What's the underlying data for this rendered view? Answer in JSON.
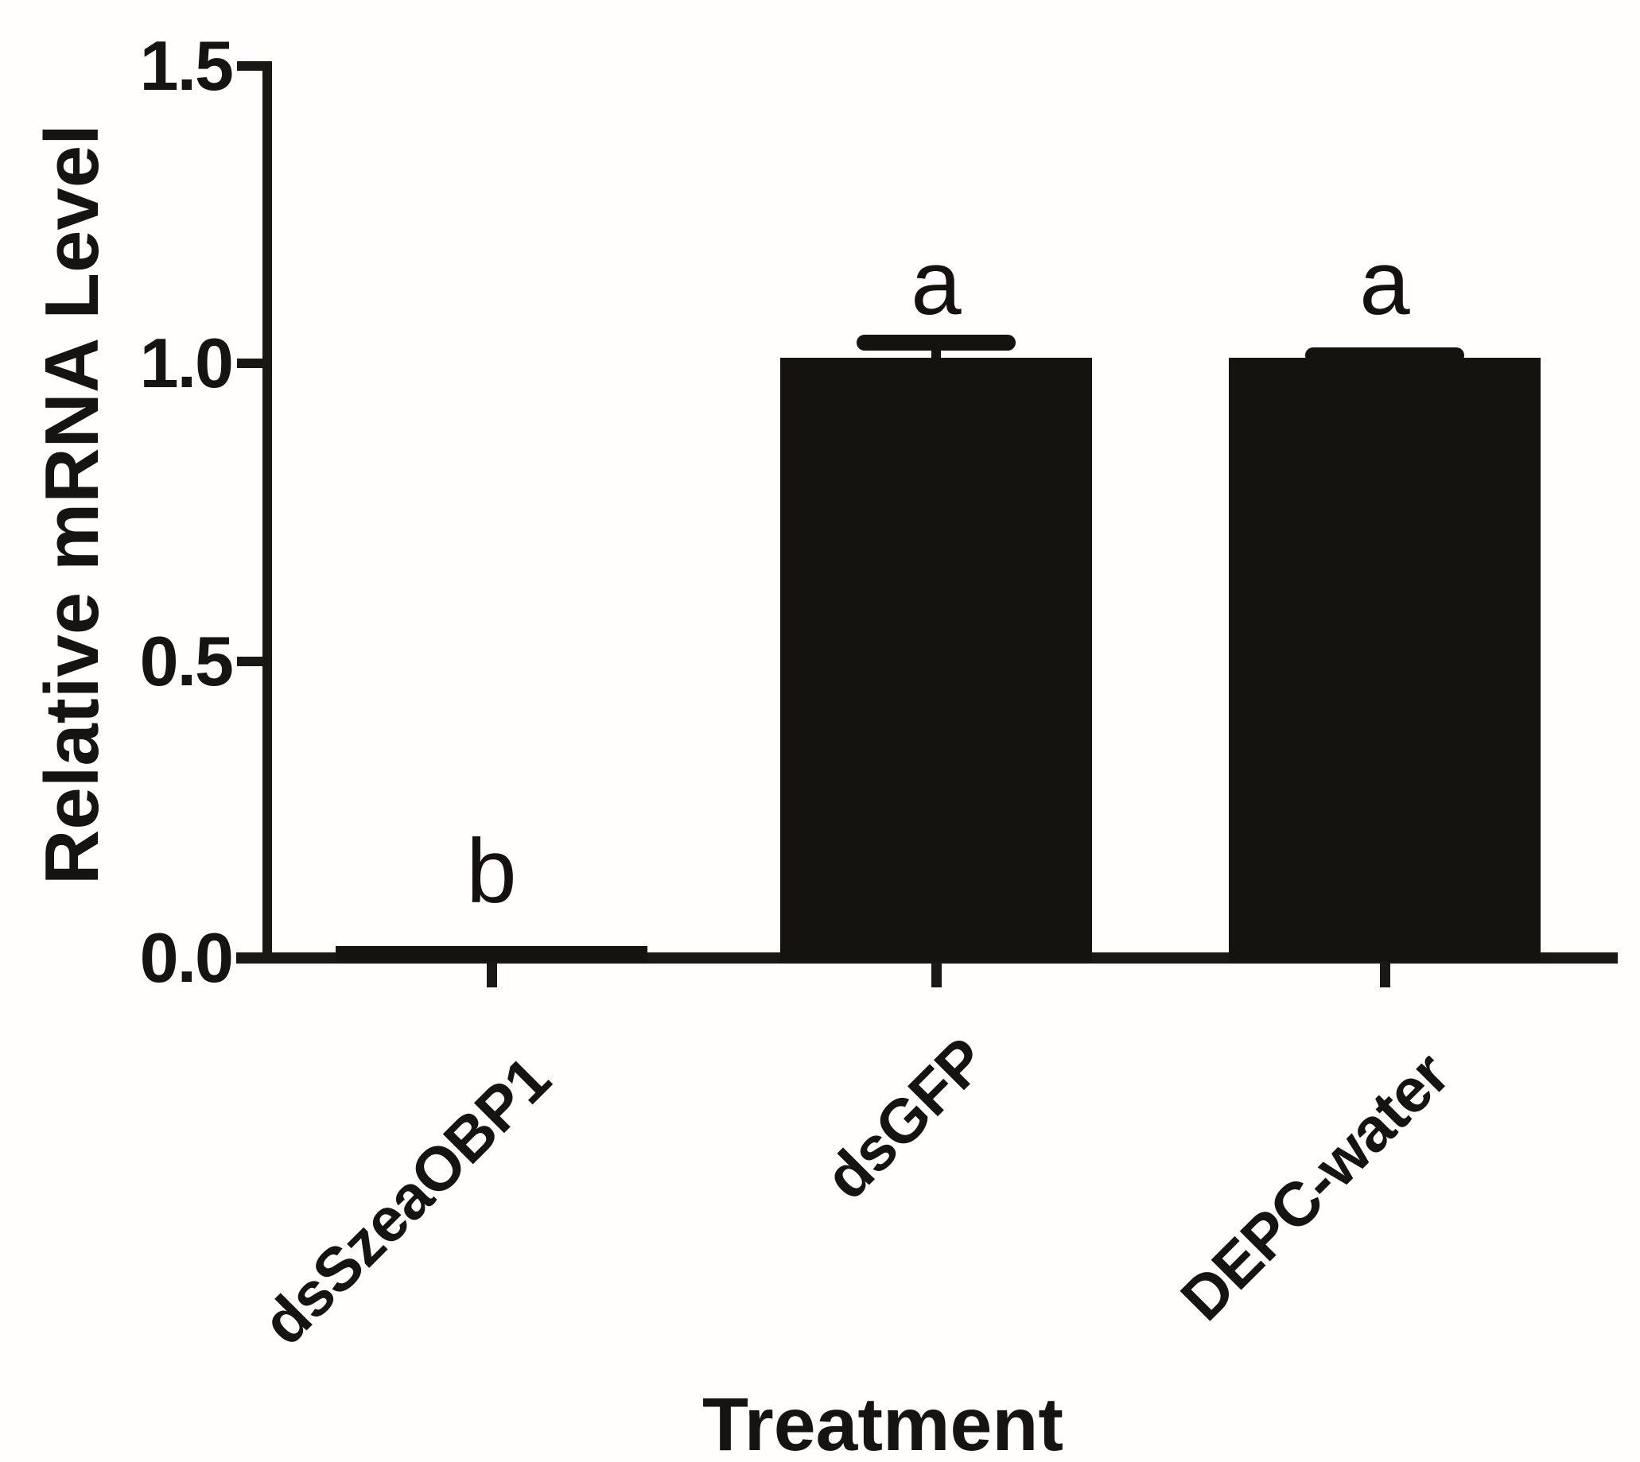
{
  "chart_data": {
    "type": "bar",
    "title": "",
    "xlabel": "Treatment",
    "ylabel": "Relative mRNA Level",
    "categories": [
      "dsSzeaOBP1",
      "dsGFP",
      "DEPC-water"
    ],
    "values": [
      0.02,
      1.01,
      1.01
    ],
    "errors": [
      0,
      0.025,
      0.003
    ],
    "significance_letters": [
      "b",
      "a",
      "a"
    ],
    "ylim": [
      0,
      1.5
    ],
    "ytick_labels": [
      "0.0",
      "0.5",
      "1.0",
      "1.5"
    ],
    "grid": false,
    "legend": null,
    "bar_color": "#141310",
    "axis_color": "#1a1815"
  }
}
